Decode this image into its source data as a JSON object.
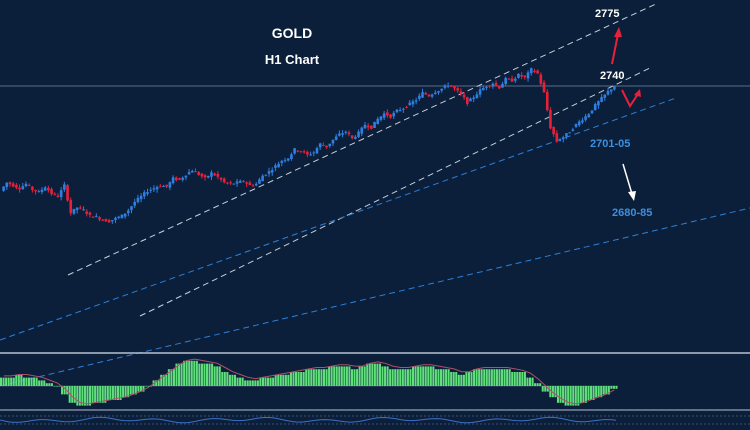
{
  "chart_data": {
    "type": "candlestick",
    "title": "GOLD",
    "subtitle": "H1 Chart",
    "horizontal_line": 2740,
    "levels": [
      {
        "label": "2775",
        "value": 2775,
        "color": "#ffffff"
      },
      {
        "label": "2740",
        "value": 2740,
        "color": "#ffffff"
      },
      {
        "label": "2701-05",
        "value": 2703,
        "color": "#3d8fe0"
      },
      {
        "label": "2680-85",
        "value": 2683,
        "color": "#3d8fe0"
      }
    ],
    "price_path": [
      2664,
      2670,
      2668,
      2666,
      2669,
      2665,
      2663,
      2667,
      2662,
      2660,
      2668,
      2648,
      2652,
      2650,
      2646,
      2645,
      2643,
      2642,
      2644,
      2646,
      2650,
      2656,
      2660,
      2664,
      2666,
      2668,
      2667,
      2673,
      2672,
      2676,
      2679,
      2676,
      2673,
      2677,
      2674,
      2670,
      2669,
      2670,
      2671,
      2668,
      2669,
      2675,
      2678,
      2682,
      2686,
      2688,
      2694,
      2693,
      2690,
      2692,
      2698,
      2696,
      2701,
      2705,
      2707,
      2702,
      2706,
      2712,
      2710,
      2716,
      2720,
      2718,
      2722,
      2724,
      2727,
      2730,
      2735,
      2733,
      2736,
      2738,
      2741,
      2738,
      2734,
      2728,
      2732,
      2737,
      2740,
      2742,
      2739,
      2745,
      2744,
      2748,
      2746,
      2752,
      2749,
      2735,
      2710,
      2700,
      2703,
      2707,
      2712,
      2716,
      2720,
      2726,
      2731,
      2736,
      2740
    ],
    "macd_histogram": [
      3,
      3,
      4,
      3,
      3,
      2,
      1,
      0,
      -3,
      -6,
      -7,
      -7,
      -6,
      -6,
      -5,
      -5,
      -4,
      -3,
      -2,
      0,
      2,
      4,
      6,
      8,
      9,
      9,
      8,
      8,
      7,
      5,
      4,
      3,
      2,
      2,
      3,
      3,
      4,
      4,
      5,
      5,
      6,
      6,
      6,
      7,
      7,
      7,
      6,
      7,
      8,
      8,
      7,
      6,
      6,
      6,
      7,
      7,
      7,
      6,
      6,
      5,
      4,
      5,
      6,
      6,
      6,
      6,
      6,
      5,
      5,
      3,
      1,
      -2,
      -4,
      -6,
      -7,
      -7,
      -6,
      -5,
      -4,
      -3,
      -1
    ],
    "channel_lines": [
      "upper channel",
      "lower channel",
      "support trend line 1",
      "support trend line 2"
    ],
    "arrows": [
      {
        "direction": "up",
        "target": "2775",
        "color": "#e8213a"
      },
      {
        "direction": "down-right",
        "target": "2680-85",
        "color": "#ffffff"
      },
      {
        "direction": "zigzag-up",
        "target": "2740",
        "color": "#e8213a"
      }
    ],
    "colors": {
      "background": "#0b1f3a",
      "bull": "#2f7fe0",
      "bear": "#e8213a",
      "histogram": "#5fe07a",
      "accent": "#3d8fe0"
    }
  }
}
